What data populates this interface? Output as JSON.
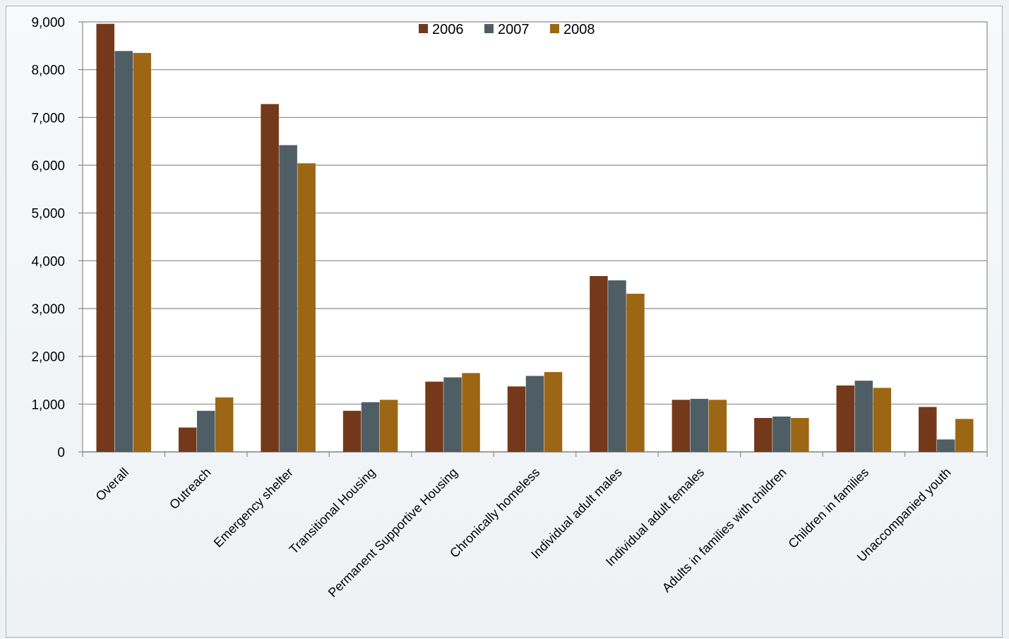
{
  "chart_data": {
    "type": "bar",
    "title": "",
    "xlabel": "",
    "ylabel": "",
    "ylim": [
      0,
      9000
    ],
    "yticks": [
      "0",
      "1,000",
      "2,000",
      "3,000",
      "4,000",
      "5,000",
      "6,000",
      "7,000",
      "8,000",
      "9,000"
    ],
    "grid": true,
    "legend": "top-center",
    "categories": [
      "Overall",
      "Outreach",
      "Emergency shelter",
      "Transitional Housing",
      "Permanent Supportive Housing",
      "Chronically homeless",
      "Individual adult males",
      "Individual adult females",
      "Adults in families with children",
      "Children in families",
      "Unaccompanied youth"
    ],
    "series": [
      {
        "name": "2006",
        "color": "#74391a",
        "values": [
          8960,
          510,
          7280,
          860,
          1470,
          1370,
          3680,
          1090,
          710,
          1390,
          940
        ]
      },
      {
        "name": "2007",
        "color": "#4f5d64",
        "values": [
          8390,
          860,
          6420,
          1040,
          1560,
          1590,
          3590,
          1110,
          740,
          1490,
          260
        ]
      },
      {
        "name": "2008",
        "color": "#9c6614",
        "values": [
          8350,
          1140,
          6040,
          1090,
          1650,
          1670,
          3310,
          1090,
          710,
          1340,
          690
        ]
      }
    ]
  }
}
